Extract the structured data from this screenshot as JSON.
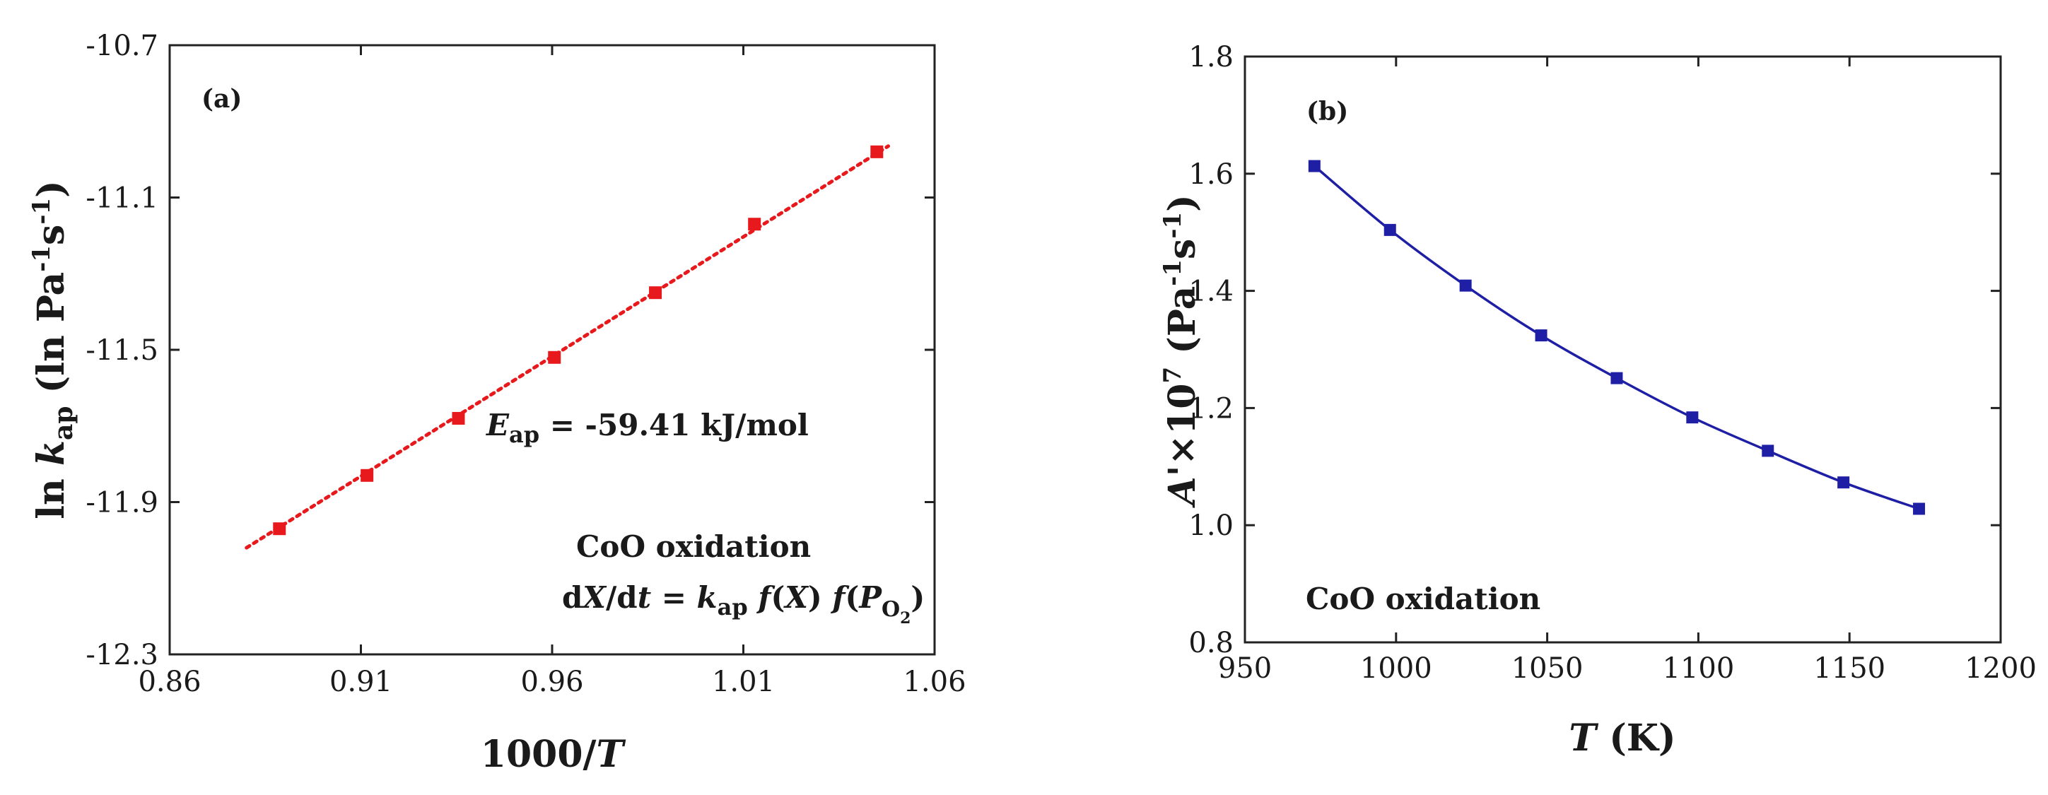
{
  "chart_data": [
    {
      "type": "scatter",
      "panel_label": "(a)",
      "xlabel_prefix": "1000/",
      "xlabel_var": "T",
      "ylabel": "ln k_ap (ln Pa^-1 s^-1)",
      "ylabel_ln": "ln ",
      "ylabel_k": "k",
      "ylabel_ap": "ap",
      "ylabel_units_open": " (ln Pa",
      "ylabel_exp1": "-1",
      "ylabel_s": "s",
      "ylabel_exp2": "-1",
      "ylabel_close": ")",
      "xlim": [
        0.86,
        1.06
      ],
      "ylim": [
        -12.3,
        -10.7
      ],
      "xticks": [
        0.86,
        0.91,
        0.96,
        1.01,
        1.06
      ],
      "xtick_labels": [
        "0.86",
        "0.91",
        "0.96",
        "1.01",
        "1.06"
      ],
      "yticks": [
        -12.3,
        -11.9,
        -11.5,
        -11.1,
        -10.7
      ],
      "ytick_labels": [
        "-12.3",
        "-11.9",
        "-11.5",
        "-11.1",
        "-10.7"
      ],
      "series": [
        {
          "name": "data",
          "color": "#e8191c",
          "marker": "square",
          "x": [
            0.8887,
            0.9116,
            0.9355,
            0.9606,
            0.987,
            1.0129,
            1.0449
          ],
          "y": [
            -11.97,
            -11.83,
            -11.68,
            -11.52,
            -11.35,
            -11.17,
            -10.98
          ]
        },
        {
          "name": "linear fit",
          "color": "#e8191c",
          "line_style": "dotted",
          "x": [
            0.8801,
            1.0479
          ],
          "y": [
            -12.02,
            -10.965
          ]
        }
      ],
      "annotation_energy": {
        "E": "E",
        "sub": "ap",
        "rest": " = -59.41 kJ/mol"
      },
      "annotation_title": "CoO oxidation",
      "annotation_equation": {
        "d": "d",
        "X": "X",
        "slash_d": "/d",
        "t": "t",
        "eq": " = ",
        "k": "k",
        "k_sub": "ap",
        "f1": " f",
        "fX_open": "(",
        "fX_var": "X",
        "fX_close": ")",
        "f2": " f",
        "p_open": "(",
        "P": "P",
        "P_sub": "O",
        "P_subsub": "2",
        "p_close": ")"
      }
    },
    {
      "type": "line",
      "panel_label": "(b)",
      "xlabel_var": "T",
      "xlabel_unit": " (K)",
      "ylabel": "A'×10^7 (Pa^-1 s^-1)",
      "ylabel_A": "A'",
      "ylabel_times": "×10",
      "ylabel_exp7": "7",
      "ylabel_units_open": " (Pa",
      "ylabel_exp1": "-1",
      "ylabel_s": "s",
      "ylabel_exp2": "-1",
      "ylabel_close": ")",
      "xlim": [
        950,
        1200
      ],
      "ylim": [
        0.8,
        1.8
      ],
      "xticks": [
        950,
        1000,
        1050,
        1100,
        1150,
        1200
      ],
      "xtick_labels": [
        "950",
        "1000",
        "1050",
        "1100",
        "1150",
        "1200"
      ],
      "yticks": [
        0.8,
        1.0,
        1.2,
        1.4,
        1.6,
        1.8
      ],
      "ytick_labels": [
        "0.8",
        "1.0",
        "1.2",
        "1.4",
        "1.6",
        "1.8"
      ],
      "series": [
        {
          "name": "A'",
          "color": "#1f1fa6",
          "marker": "square",
          "x": [
            973,
            998,
            1023,
            1048,
            1073,
            1098,
            1123,
            1148,
            1173
          ],
          "y": [
            1.613,
            1.504,
            1.409,
            1.324,
            1.251,
            1.184,
            1.127,
            1.073,
            1.028
          ]
        }
      ],
      "annotation_title": "CoO oxidation"
    }
  ]
}
